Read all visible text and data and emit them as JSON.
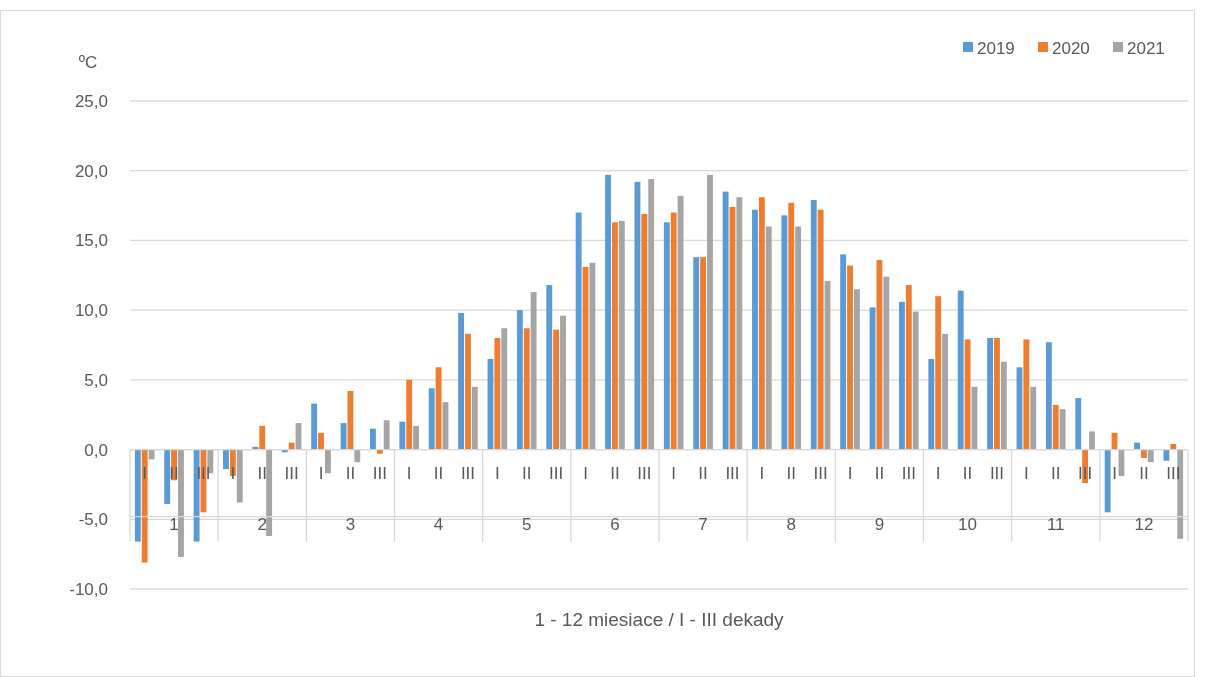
{
  "chart_data": {
    "type": "bar",
    "ylabel": "ºC",
    "xlabel": "1 - 12 miesiace / I - III dekady",
    "categories": [
      "I",
      "II",
      "III",
      "I",
      "II",
      "III",
      "I",
      "II",
      "III",
      "I",
      "II",
      "III",
      "I",
      "II",
      "III",
      "I",
      "II",
      "III",
      "I",
      "II",
      "III",
      "I",
      "II",
      "III",
      "I",
      "II",
      "III",
      "I",
      "II",
      "III",
      "I",
      "II",
      "III",
      "I",
      "II",
      "III"
    ],
    "annotations": [
      "1",
      "2",
      "3",
      "4",
      "5",
      "6",
      "7",
      "8",
      "9",
      "10",
      "11",
      "12"
    ],
    "series": [
      {
        "name": "2019",
        "color": "#5b9bd5",
        "values": [
          -6.6,
          -3.9,
          -6.6,
          -1.4,
          0.2,
          -0.2,
          3.3,
          1.9,
          1.5,
          2.0,
          4.4,
          9.8,
          6.5,
          10.0,
          11.8,
          17.0,
          19.7,
          19.2,
          16.3,
          13.8,
          18.5,
          17.2,
          16.8,
          17.9,
          14.0,
          10.2,
          10.6,
          6.5,
          11.4,
          8.0,
          5.9,
          7.7,
          3.7,
          -4.5,
          0.5,
          -0.8
        ]
      },
      {
        "name": "2020",
        "color": "#ed7d31",
        "values": [
          -8.1,
          -2.2,
          -4.5,
          -1.9,
          1.7,
          0.5,
          1.2,
          4.2,
          -0.3,
          5.0,
          5.9,
          8.3,
          8.0,
          8.7,
          8.6,
          13.1,
          16.3,
          16.9,
          17.0,
          13.8,
          17.4,
          18.1,
          17.7,
          17.2,
          13.2,
          13.6,
          11.8,
          11.0,
          7.9,
          8.0,
          7.9,
          3.2,
          -2.4,
          1.2,
          -0.6,
          0.4
        ]
      },
      {
        "name": "2021",
        "color": "#a5a5a5",
        "values": [
          -0.7,
          -7.7,
          -1.7,
          -3.8,
          -6.2,
          1.9,
          -1.7,
          -0.9,
          2.1,
          1.7,
          3.4,
          4.5,
          8.7,
          11.3,
          9.6,
          13.4,
          16.4,
          19.4,
          18.2,
          19.7,
          18.1,
          16.0,
          16.0,
          12.1,
          11.5,
          12.4,
          9.9,
          8.3,
          4.5,
          6.3,
          4.5,
          2.9,
          1.3,
          -1.9,
          -0.9,
          -6.4
        ]
      }
    ],
    "ylim": [
      -10,
      25
    ],
    "yticks": [
      {
        "value": -10,
        "label": "-10,0"
      },
      {
        "value": -5,
        "label": "-5,0"
      },
      {
        "value": 0,
        "label": "0,0"
      },
      {
        "value": 5,
        "label": "5,0"
      },
      {
        "value": 10,
        "label": "10,0"
      },
      {
        "value": 15,
        "label": "15,0"
      },
      {
        "value": 20,
        "label": "20,0"
      },
      {
        "value": 25,
        "label": "25,0"
      }
    ],
    "grid": "y",
    "legend": "top right"
  }
}
